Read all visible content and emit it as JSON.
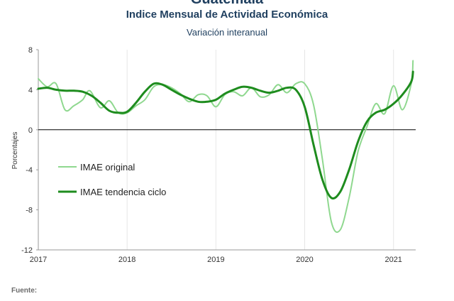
{
  "header": {
    "top_title": "Guatemala",
    "title": "Indice Mensual de  Actividad Económica",
    "subtitle": "Variación interanual"
  },
  "footer": {
    "label": "Fuente:"
  },
  "colors": {
    "original": "#8fd88f",
    "trend": "#1e8c1e",
    "zero_line": "#000000",
    "grid": "#e6e6e6"
  },
  "chart_data": {
    "type": "line",
    "title": "Indice Mensual de  Actividad Económica",
    "subtitle": "Variación interanual",
    "ylabel": "Porcentajes",
    "xlabel": "",
    "xlim": [
      2017.0,
      2021.25
    ],
    "ylim": [
      -12,
      8
    ],
    "y_ticks": [
      8,
      4,
      0,
      -4,
      -8,
      -12
    ],
    "y_tick_labels": [
      "8",
      "4",
      "0",
      "-4",
      "-8",
      "-12"
    ],
    "x_ticks": [
      2017,
      2018,
      2019,
      2020,
      2021
    ],
    "x_tick_labels": [
      "2017",
      "2018",
      "2019",
      "2020",
      "2021"
    ],
    "grid": "vertical",
    "legend": "inside-left",
    "series": [
      {
        "name": "IMAE original",
        "points": [
          [
            2017.0,
            5.1
          ],
          [
            2017.1,
            4.3
          ],
          [
            2017.2,
            4.6
          ],
          [
            2017.3,
            2.0
          ],
          [
            2017.4,
            2.4
          ],
          [
            2017.5,
            3.0
          ],
          [
            2017.58,
            3.9
          ],
          [
            2017.7,
            2.2
          ],
          [
            2017.8,
            2.9
          ],
          [
            2017.9,
            1.7
          ],
          [
            2018.0,
            1.7
          ],
          [
            2018.1,
            2.4
          ],
          [
            2018.2,
            3.0
          ],
          [
            2018.3,
            4.3
          ],
          [
            2018.4,
            4.5
          ],
          [
            2018.5,
            4.2
          ],
          [
            2018.6,
            3.6
          ],
          [
            2018.7,
            2.8
          ],
          [
            2018.8,
            3.5
          ],
          [
            2018.9,
            3.4
          ],
          [
            2019.0,
            2.3
          ],
          [
            2019.1,
            3.5
          ],
          [
            2019.2,
            3.8
          ],
          [
            2019.3,
            3.4
          ],
          [
            2019.4,
            4.2
          ],
          [
            2019.5,
            3.3
          ],
          [
            2019.6,
            3.5
          ],
          [
            2019.7,
            4.5
          ],
          [
            2019.8,
            3.7
          ],
          [
            2019.9,
            4.6
          ],
          [
            2020.0,
            4.6
          ],
          [
            2020.1,
            2.5
          ],
          [
            2020.2,
            -3.0
          ],
          [
            2020.3,
            -9.2
          ],
          [
            2020.4,
            -10.0
          ],
          [
            2020.5,
            -6.8
          ],
          [
            2020.6,
            -2.2
          ],
          [
            2020.7,
            0.3
          ],
          [
            2020.8,
            2.6
          ],
          [
            2020.9,
            1.6
          ],
          [
            2021.0,
            4.4
          ],
          [
            2021.1,
            2.0
          ],
          [
            2021.2,
            4.6
          ],
          [
            2021.22,
            6.9
          ]
        ]
      },
      {
        "name": "IMAE tendencia ciclo",
        "points": [
          [
            2017.0,
            4.1
          ],
          [
            2017.1,
            4.2
          ],
          [
            2017.2,
            4.0
          ],
          [
            2017.3,
            3.9
          ],
          [
            2017.4,
            3.9
          ],
          [
            2017.5,
            3.8
          ],
          [
            2017.6,
            3.4
          ],
          [
            2017.7,
            2.7
          ],
          [
            2017.8,
            1.9
          ],
          [
            2017.9,
            1.7
          ],
          [
            2018.0,
            1.8
          ],
          [
            2018.1,
            2.7
          ],
          [
            2018.2,
            3.8
          ],
          [
            2018.3,
            4.6
          ],
          [
            2018.4,
            4.5
          ],
          [
            2018.5,
            4.0
          ],
          [
            2018.6,
            3.5
          ],
          [
            2018.7,
            3.1
          ],
          [
            2018.8,
            2.8
          ],
          [
            2018.9,
            2.8
          ],
          [
            2019.0,
            3.0
          ],
          [
            2019.1,
            3.6
          ],
          [
            2019.2,
            4.0
          ],
          [
            2019.3,
            4.3
          ],
          [
            2019.4,
            4.2
          ],
          [
            2019.5,
            3.9
          ],
          [
            2019.6,
            3.7
          ],
          [
            2019.7,
            3.9
          ],
          [
            2019.8,
            4.2
          ],
          [
            2019.9,
            4.0
          ],
          [
            2020.0,
            2.3
          ],
          [
            2020.1,
            -1.5
          ],
          [
            2020.2,
            -5.0
          ],
          [
            2020.3,
            -6.8
          ],
          [
            2020.4,
            -6.2
          ],
          [
            2020.5,
            -4.0
          ],
          [
            2020.6,
            -1.2
          ],
          [
            2020.7,
            0.8
          ],
          [
            2020.8,
            1.7
          ],
          [
            2020.9,
            2.0
          ],
          [
            2021.0,
            2.6
          ],
          [
            2021.1,
            3.5
          ],
          [
            2021.2,
            4.8
          ],
          [
            2021.22,
            5.8
          ]
        ]
      }
    ]
  }
}
